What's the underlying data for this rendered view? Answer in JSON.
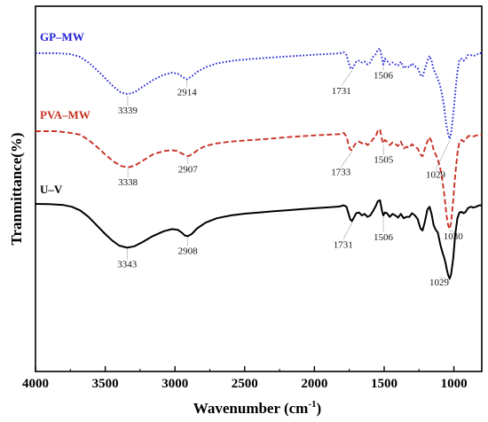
{
  "chart_data": {
    "type": "line",
    "xlabel": "Wavenumber (cm",
    "xlabel_sup": "-1",
    "xlabel_end": ")",
    "ylabel": "Tranmittance(%)",
    "xlim": [
      4000,
      800
    ],
    "x_reversed": true,
    "xticks": [
      4000,
      3500,
      3000,
      2500,
      2000,
      1500,
      1000
    ],
    "grid": false,
    "series": [
      {
        "name": "GP–MW",
        "color": "#1f1fd6",
        "dash": "dotted",
        "points": [
          [
            4000,
            91
          ],
          [
            3850,
            91
          ],
          [
            3750,
            90.5
          ],
          [
            3680,
            89
          ],
          [
            3620,
            86
          ],
          [
            3560,
            82
          ],
          [
            3500,
            77.5
          ],
          [
            3440,
            73
          ],
          [
            3390,
            70
          ],
          [
            3340,
            69
          ],
          [
            3290,
            70
          ],
          [
            3230,
            73
          ],
          [
            3160,
            76.5
          ],
          [
            3080,
            79.5
          ],
          [
            3020,
            80.5
          ],
          [
            2980,
            80
          ],
          [
            2940,
            78
          ],
          [
            2914,
            77
          ],
          [
            2880,
            78.5
          ],
          [
            2840,
            81
          ],
          [
            2780,
            83.5
          ],
          [
            2700,
            85.5
          ],
          [
            2600,
            86.8
          ],
          [
            2500,
            87.6
          ],
          [
            2400,
            88.2
          ],
          [
            2300,
            88.7
          ],
          [
            2200,
            89.2
          ],
          [
            2100,
            89.7
          ],
          [
            2000,
            90.2
          ],
          [
            1900,
            90.6
          ],
          [
            1820,
            90.9
          ],
          [
            1790,
            91.5
          ],
          [
            1770,
            90
          ],
          [
            1755,
            86
          ],
          [
            1740,
            83
          ],
          [
            1731,
            82.5
          ],
          [
            1718,
            84
          ],
          [
            1700,
            86.5
          ],
          [
            1680,
            87
          ],
          [
            1660,
            86
          ],
          [
            1640,
            86.5
          ],
          [
            1620,
            85
          ],
          [
            1600,
            86
          ],
          [
            1580,
            89
          ],
          [
            1560,
            90.5
          ],
          [
            1545,
            93
          ],
          [
            1530,
            93.5
          ],
          [
            1515,
            88
          ],
          [
            1506,
            85
          ],
          [
            1495,
            88
          ],
          [
            1480,
            87
          ],
          [
            1460,
            85
          ],
          [
            1440,
            86
          ],
          [
            1420,
            85
          ],
          [
            1400,
            84.5
          ],
          [
            1380,
            86.5
          ],
          [
            1360,
            83
          ],
          [
            1340,
            84
          ],
          [
            1320,
            83.5
          ],
          [
            1300,
            85.5
          ],
          [
            1280,
            84
          ],
          [
            1260,
            83
          ],
          [
            1240,
            79.5
          ],
          [
            1225,
            78.5
          ],
          [
            1210,
            82
          ],
          [
            1190,
            87
          ],
          [
            1175,
            89.5
          ],
          [
            1160,
            87
          ],
          [
            1145,
            82
          ],
          [
            1130,
            80
          ],
          [
            1115,
            77
          ],
          [
            1100,
            74
          ],
          [
            1085,
            69
          ],
          [
            1070,
            62
          ],
          [
            1055,
            53
          ],
          [
            1040,
            47
          ],
          [
            1029,
            45
          ],
          [
            1018,
            49
          ],
          [
            1005,
            58
          ],
          [
            990,
            70
          ],
          [
            975,
            81
          ],
          [
            960,
            87.5
          ],
          [
            945,
            88
          ],
          [
            930,
            87
          ],
          [
            915,
            88
          ],
          [
            900,
            90
          ],
          [
            880,
            90
          ],
          [
            860,
            89.5
          ],
          [
            840,
            90
          ],
          [
            820,
            91
          ],
          [
            800,
            91
          ]
        ]
      },
      {
        "name": "PVA–MW",
        "color": "#c83224",
        "dash": "dashed",
        "points": [
          [
            4000,
            69
          ],
          [
            3850,
            69
          ],
          [
            3750,
            68
          ],
          [
            3680,
            67
          ],
          [
            3620,
            64
          ],
          [
            3560,
            60
          ],
          [
            3500,
            55.5
          ],
          [
            3440,
            51.5
          ],
          [
            3390,
            49
          ],
          [
            3338,
            48
          ],
          [
            3290,
            49
          ],
          [
            3230,
            52
          ],
          [
            3160,
            55.5
          ],
          [
            3080,
            57.5
          ],
          [
            3020,
            58
          ],
          [
            2980,
            57.5
          ],
          [
            2950,
            56
          ],
          [
            2907,
            54.5
          ],
          [
            2870,
            56
          ],
          [
            2830,
            58.5
          ],
          [
            2780,
            60.5
          ],
          [
            2700,
            62
          ],
          [
            2600,
            63
          ],
          [
            2500,
            63.6
          ],
          [
            2400,
            64.2
          ],
          [
            2300,
            64.8
          ],
          [
            2200,
            65.5
          ],
          [
            2100,
            66.1
          ],
          [
            2000,
            66.6
          ],
          [
            1900,
            67
          ],
          [
            1820,
            67.3
          ],
          [
            1790,
            68
          ],
          [
            1770,
            66
          ],
          [
            1755,
            61
          ],
          [
            1745,
            58.5
          ],
          [
            1733,
            58
          ],
          [
            1720,
            60
          ],
          [
            1700,
            62.5
          ],
          [
            1680,
            63
          ],
          [
            1660,
            62
          ],
          [
            1640,
            62.5
          ],
          [
            1620,
            61
          ],
          [
            1600,
            62
          ],
          [
            1580,
            64.5
          ],
          [
            1560,
            66
          ],
          [
            1545,
            69.5
          ],
          [
            1530,
            70
          ],
          [
            1515,
            64
          ],
          [
            1505,
            62
          ],
          [
            1495,
            64
          ],
          [
            1480,
            63
          ],
          [
            1460,
            61
          ],
          [
            1440,
            62.5
          ],
          [
            1420,
            61.5
          ],
          [
            1400,
            60.5
          ],
          [
            1380,
            63
          ],
          [
            1360,
            59
          ],
          [
            1340,
            60
          ],
          [
            1320,
            59.5
          ],
          [
            1300,
            61.5
          ],
          [
            1280,
            60
          ],
          [
            1260,
            59
          ],
          [
            1240,
            55.5
          ],
          [
            1225,
            54.5
          ],
          [
            1210,
            58.5
          ],
          [
            1190,
            63
          ],
          [
            1175,
            65.5
          ],
          [
            1160,
            63
          ],
          [
            1145,
            58
          ],
          [
            1130,
            55.5
          ],
          [
            1115,
            52.5
          ],
          [
            1100,
            48.5
          ],
          [
            1085,
            42
          ],
          [
            1070,
            33
          ],
          [
            1055,
            22
          ],
          [
            1045,
            16
          ],
          [
            1035,
            13
          ],
          [
            1030,
            12.5
          ],
          [
            1020,
            16
          ],
          [
            1005,
            29
          ],
          [
            990,
            44
          ],
          [
            975,
            56
          ],
          [
            960,
            63
          ],
          [
            945,
            64
          ],
          [
            930,
            63
          ],
          [
            915,
            64
          ],
          [
            900,
            66
          ],
          [
            880,
            66.5
          ],
          [
            860,
            66
          ],
          [
            840,
            66.5
          ],
          [
            820,
            67
          ],
          [
            800,
            67
          ]
        ]
      },
      {
        "name": "U–V",
        "color": "#000000",
        "dash": "solid",
        "points": [
          [
            4000,
            52
          ],
          [
            3900,
            51.8
          ],
          [
            3800,
            51.2
          ],
          [
            3740,
            50
          ],
          [
            3680,
            47.5
          ],
          [
            3620,
            43
          ],
          [
            3560,
            37
          ],
          [
            3500,
            31
          ],
          [
            3450,
            26.5
          ],
          [
            3400,
            23
          ],
          [
            3343,
            21.5
          ],
          [
            3290,
            22.5
          ],
          [
            3230,
            25.5
          ],
          [
            3160,
            29.5
          ],
          [
            3080,
            33
          ],
          [
            3020,
            34.5
          ],
          [
            2980,
            34
          ],
          [
            2950,
            32
          ],
          [
            2930,
            30
          ],
          [
            2908,
            29.5
          ],
          [
            2880,
            31
          ],
          [
            2840,
            35
          ],
          [
            2780,
            39
          ],
          [
            2700,
            42
          ],
          [
            2600,
            44
          ],
          [
            2500,
            45.2
          ],
          [
            2400,
            46
          ],
          [
            2300,
            46.8
          ],
          [
            2200,
            47.5
          ],
          [
            2100,
            48.3
          ],
          [
            2000,
            49
          ],
          [
            1900,
            49.6
          ],
          [
            1820,
            50.2
          ],
          [
            1790,
            51
          ],
          [
            1770,
            50
          ],
          [
            1755,
            45
          ],
          [
            1742,
            41
          ],
          [
            1731,
            40
          ],
          [
            1720,
            42
          ],
          [
            1700,
            45.5
          ],
          [
            1680,
            46
          ],
          [
            1660,
            44
          ],
          [
            1640,
            45
          ],
          [
            1620,
            43
          ],
          [
            1600,
            44
          ],
          [
            1580,
            47
          ],
          [
            1560,
            50.5
          ],
          [
            1545,
            54
          ],
          [
            1530,
            54.5
          ],
          [
            1515,
            47
          ],
          [
            1506,
            44
          ],
          [
            1495,
            46
          ],
          [
            1480,
            45.5
          ],
          [
            1460,
            43
          ],
          [
            1440,
            45
          ],
          [
            1420,
            44
          ],
          [
            1400,
            42.5
          ],
          [
            1380,
            45
          ],
          [
            1360,
            42
          ],
          [
            1340,
            43
          ],
          [
            1320,
            43
          ],
          [
            1300,
            45.5
          ],
          [
            1280,
            44
          ],
          [
            1260,
            41.5
          ],
          [
            1240,
            35
          ],
          [
            1225,
            33.5
          ],
          [
            1210,
            39
          ],
          [
            1190,
            48
          ],
          [
            1175,
            50
          ],
          [
            1160,
            45
          ],
          [
            1145,
            37
          ],
          [
            1130,
            34
          ],
          [
            1115,
            32
          ],
          [
            1100,
            25
          ],
          [
            1090,
            21
          ],
          [
            1078,
            17
          ],
          [
            1068,
            14
          ],
          [
            1060,
            11
          ],
          [
            1050,
            6
          ],
          [
            1040,
            2
          ],
          [
            1030,
            0
          ],
          [
            1020,
            3
          ],
          [
            1005,
            14
          ],
          [
            990,
            31
          ],
          [
            975,
            42
          ],
          [
            960,
            46
          ],
          [
            945,
            46.5
          ],
          [
            930,
            45.5
          ],
          [
            915,
            46.5
          ],
          [
            900,
            49
          ],
          [
            880,
            50
          ],
          [
            860,
            49.5
          ],
          [
            840,
            50
          ],
          [
            820,
            51
          ],
          [
            800,
            51
          ]
        ]
      }
    ],
    "peak_labels": [
      {
        "series": "GP–MW",
        "text": "3339",
        "x": 3339
      },
      {
        "series": "GP–MW",
        "text": "2914",
        "x": 2914
      },
      {
        "series": "GP–MW",
        "text": "1731",
        "x": 1731
      },
      {
        "series": "GP–MW",
        "text": "1506",
        "x": 1506
      },
      {
        "series": "GP–MW",
        "text": "1029",
        "x": 1029
      },
      {
        "series": "PVA–MW",
        "text": "3338",
        "x": 3338
      },
      {
        "series": "PVA–MW",
        "text": "2907",
        "x": 2907
      },
      {
        "series": "PVA–MW",
        "text": "1733",
        "x": 1733
      },
      {
        "series": "PVA–MW",
        "text": "1505",
        "x": 1505
      },
      {
        "series": "PVA–MW",
        "text": "1030",
        "x": 1030
      },
      {
        "series": "U–V",
        "text": "3343",
        "x": 3343
      },
      {
        "series": "U–V",
        "text": "2908",
        "x": 2908
      },
      {
        "series": "U–V",
        "text": "1731",
        "x": 1731
      },
      {
        "series": "U–V",
        "text": "1506",
        "x": 1506
      },
      {
        "series": "U–V",
        "text": "1029",
        "x": 1029
      }
    ],
    "series_labels_placement": "inside-left-above-each-curve"
  }
}
